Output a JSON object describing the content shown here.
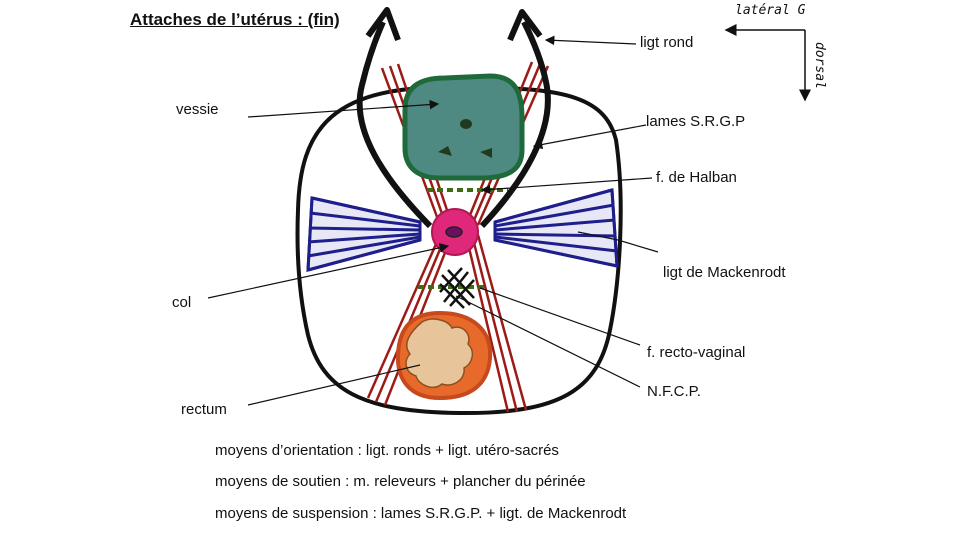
{
  "title": "Attaches de l’utérus : (fin)",
  "orientation": {
    "lateral": "latéral G",
    "dorsal": "dorsal"
  },
  "labels": {
    "vessie": "vessie",
    "col": "col",
    "rectum": "rectum",
    "ligt_rond": "ligt rond",
    "lames": "lames S.R.G.P",
    "halban": "f. de Halban",
    "mackenrodt": "ligt de Mackenrodt",
    "recto_vaginal": "f. recto-vaginal",
    "nfcp": "N.F.C.P."
  },
  "notes": [
    "moyens d’orientation : ligt. ronds + ligt. utéro-sacrés",
    "moyens de soutien : m. releveurs + plancher du périnée",
    "moyens de suspension : lames S.R.G.P. + ligt. de Mackenrodt"
  ],
  "colors": {
    "outline": "#111111",
    "bladder_fill": "#4f8a82",
    "bladder_border": "#1f6a3a",
    "ligament_red": "#9c1b17",
    "mackenrodt_blue": "#1f1f8c",
    "cervix_fill": "#e0287a",
    "rectum_border": "#c74a1e",
    "rectum_inner": "#e8c49a",
    "fascia_green": "#3f6b12"
  }
}
